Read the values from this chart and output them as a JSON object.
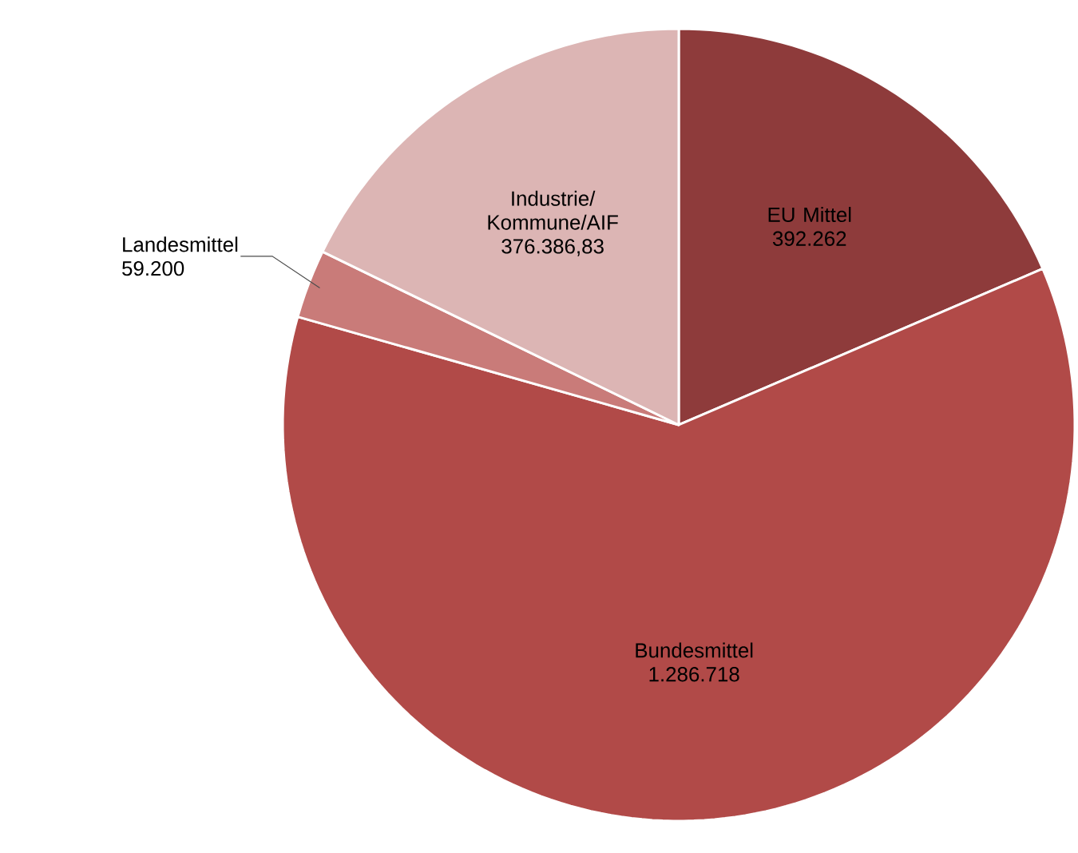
{
  "chart_data": {
    "type": "pie",
    "categories": [
      "EU Mittel",
      "Bundesmittel",
      "Landesmittel",
      "Industrie/ Kommune/AIF"
    ],
    "values": [
      392262,
      1286718,
      59200,
      376386.83
    ],
    "value_labels": [
      "392.262",
      "1.286.718",
      "59.200",
      "376.386,83"
    ],
    "colors": [
      "#8e3b3b",
      "#b14a48",
      "#c97b79",
      "#dcb5b4"
    ]
  }
}
